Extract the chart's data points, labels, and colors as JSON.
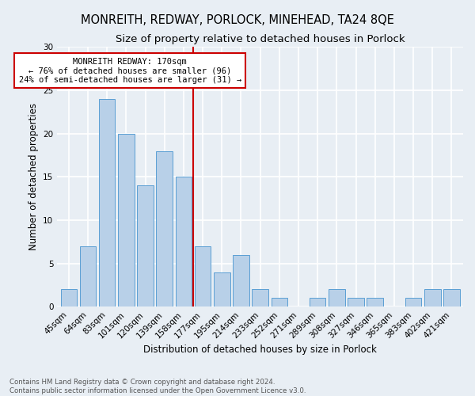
{
  "title1": "MONREITH, REDWAY, PORLOCK, MINEHEAD, TA24 8QE",
  "title2": "Size of property relative to detached houses in Porlock",
  "xlabel": "Distribution of detached houses by size in Porlock",
  "ylabel": "Number of detached properties",
  "footnote1": "Contains HM Land Registry data © Crown copyright and database right 2024.",
  "footnote2": "Contains public sector information licensed under the Open Government Licence v3.0.",
  "categories": [
    "45sqm",
    "64sqm",
    "83sqm",
    "101sqm",
    "120sqm",
    "139sqm",
    "158sqm",
    "177sqm",
    "195sqm",
    "214sqm",
    "233sqm",
    "252sqm",
    "271sqm",
    "289sqm",
    "308sqm",
    "327sqm",
    "346sqm",
    "365sqm",
    "383sqm",
    "402sqm",
    "421sqm"
  ],
  "values": [
    2,
    7,
    24,
    20,
    14,
    18,
    15,
    7,
    4,
    6,
    2,
    1,
    0,
    1,
    2,
    1,
    1,
    0,
    1,
    2,
    2
  ],
  "bar_color": "#b8d0e8",
  "bar_edge_color": "#5a9fd4",
  "marker_line_index": 7,
  "marker_label_line1": "MONREITH REDWAY: 170sqm",
  "marker_label_line2": "← 76% of detached houses are smaller (96)",
  "marker_label_line3": "24% of semi-detached houses are larger (31) →",
  "annotation_box_color": "#cc0000",
  "ylim": [
    0,
    30
  ],
  "yticks": [
    0,
    5,
    10,
    15,
    20,
    25,
    30
  ],
  "bg_color": "#e8eef4",
  "grid_color": "#ffffff",
  "title_fontsize": 10.5,
  "subtitle_fontsize": 9.5,
  "axis_label_fontsize": 8.5,
  "tick_fontsize": 7.5,
  "annot_fontsize": 7.5
}
